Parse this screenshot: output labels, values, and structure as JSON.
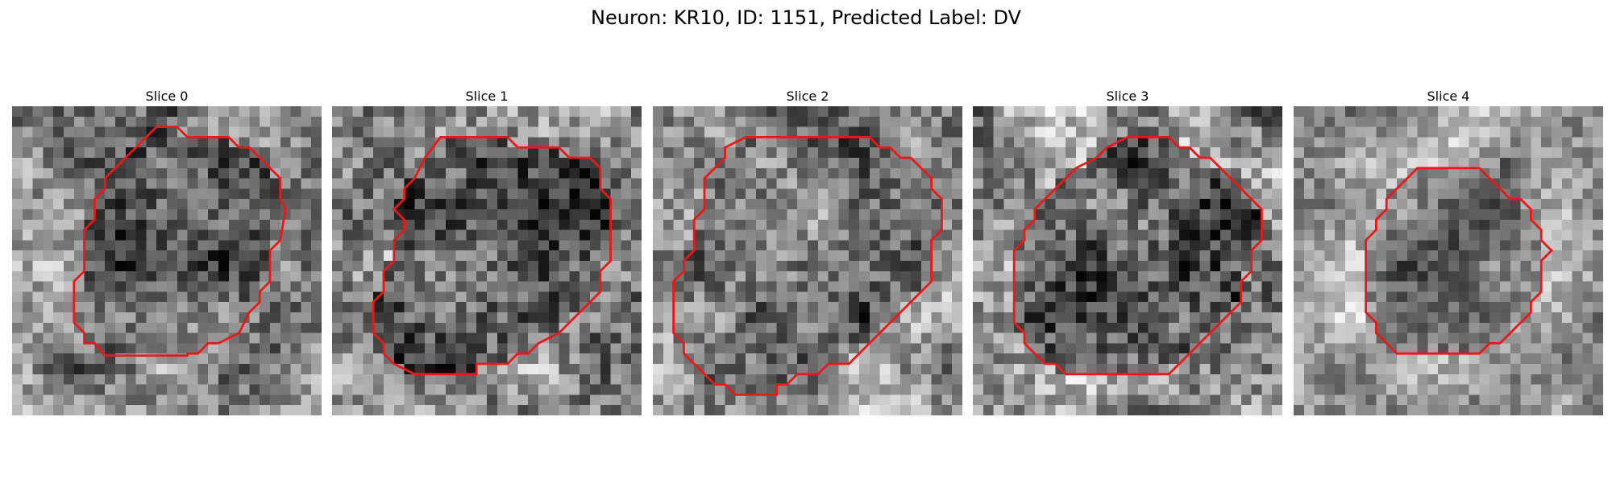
{
  "figure": {
    "title": "Neuron: KR10, ID: 1151, Predicted Label: DV"
  },
  "panels": [
    {
      "title": "Slice 0",
      "seed": 11,
      "mean": 0.55,
      "contrast": 0.22,
      "interior_darkness": 0.18,
      "contour_color": "#e8191b"
    },
    {
      "title": "Slice 1",
      "seed": 23,
      "mean": 0.55,
      "contrast": 0.24,
      "interior_darkness": 0.22,
      "contour_color": "#e8191b"
    },
    {
      "title": "Slice 2",
      "seed": 37,
      "mean": 0.58,
      "contrast": 0.22,
      "interior_darkness": 0.12,
      "contour_color": "#e8191b"
    },
    {
      "title": "Slice 3",
      "seed": 41,
      "mean": 0.55,
      "contrast": 0.25,
      "interior_darkness": 0.26,
      "contour_color": "#e8191b"
    },
    {
      "title": "Slice 4",
      "seed": 53,
      "mean": 0.66,
      "contrast": 0.18,
      "interior_darkness": 0.18,
      "contour_color": "#e8191b"
    }
  ]
}
